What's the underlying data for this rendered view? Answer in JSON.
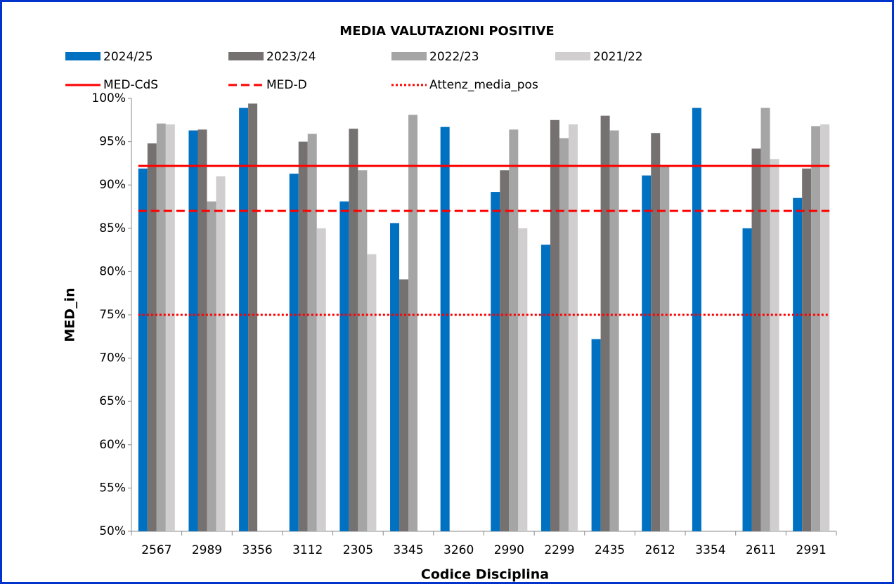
{
  "chart_data": {
    "type": "bar",
    "title": "MEDIA VALUTAZIONI POSITIVE",
    "x_label": "Codice Disciplina",
    "y_label": "MED_in",
    "categories": [
      "2567",
      "2989",
      "3356",
      "3112",
      "2305",
      "3345",
      "3260",
      "2990",
      "2299",
      "2435",
      "2612",
      "3354",
      "2611",
      "2991"
    ],
    "series": [
      {
        "name": "2024/25",
        "color": "#0070c0",
        "values": [
          91.9,
          96.3,
          98.9,
          91.3,
          88.1,
          85.6,
          96.7,
          89.2,
          83.1,
          72.2,
          91.1,
          98.9,
          85.0,
          88.5
        ]
      },
      {
        "name": "2023/24",
        "color": "#767171",
        "values": [
          94.8,
          96.4,
          99.4,
          95.0,
          96.5,
          79.1,
          null,
          91.7,
          97.5,
          98.0,
          96.0,
          null,
          94.2,
          91.9
        ]
      },
      {
        "name": "2022/23",
        "color": "#a5a5a5",
        "values": [
          97.1,
          88.1,
          null,
          95.9,
          91.7,
          98.1,
          null,
          96.4,
          95.4,
          96.3,
          92.2,
          null,
          98.9,
          96.8
        ]
      },
      {
        "name": "2021/22",
        "color": "#d0cece",
        "values": [
          97.0,
          91.0,
          null,
          85.0,
          82.0,
          null,
          null,
          85.0,
          97.0,
          null,
          null,
          null,
          93.0,
          97.0
        ]
      }
    ],
    "reference_lines": [
      {
        "name": "MED-CdS",
        "color": "#ff0000",
        "style": "solid",
        "value": 92.2
      },
      {
        "name": "MED-D",
        "color": "#ff0000",
        "style": "dashed",
        "value": 87.0
      },
      {
        "name": "Attenz_media_pos",
        "color": "#ff0000",
        "style": "dotted",
        "value": 75.0
      }
    ],
    "ylim": [
      50,
      100
    ],
    "yticks": [
      {
        "value": 50,
        "label": "50%"
      },
      {
        "value": 55,
        "label": "55%"
      },
      {
        "value": 60,
        "label": "60%"
      },
      {
        "value": 65,
        "label": "65%"
      },
      {
        "value": 70,
        "label": "70%"
      },
      {
        "value": 75,
        "label": "75%"
      },
      {
        "value": 80,
        "label": "80%"
      },
      {
        "value": 85,
        "label": "85%"
      },
      {
        "value": 90,
        "label": "90%"
      },
      {
        "value": 95,
        "label": "95%"
      },
      {
        "value": 100,
        "label": "100%"
      }
    ],
    "grid": false
  }
}
